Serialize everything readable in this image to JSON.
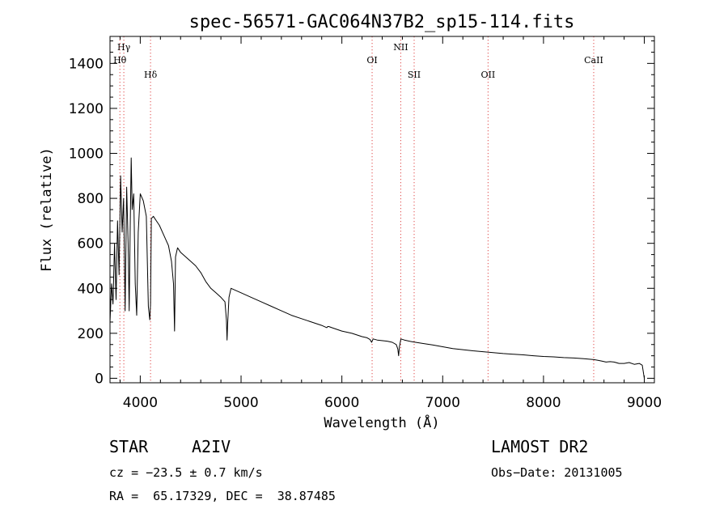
{
  "chart_data": {
    "type": "line",
    "title": "spec-56571-GAC064N37B2_sp15-114.fits",
    "xlabel": "Wavelength (Å)",
    "ylabel": "Flux (relative)",
    "xlim": [
      3700,
      9100
    ],
    "ylim": [
      -20,
      1520
    ],
    "xticks": [
      4000,
      5000,
      6000,
      7000,
      8000,
      9000
    ],
    "yticks": [
      0,
      200,
      400,
      600,
      800,
      1000,
      1200,
      1400
    ],
    "grid": false,
    "series": [
      {
        "x": [
          3700,
          3715,
          3730,
          3745,
          3760,
          3775,
          3790,
          3805,
          3820,
          3835,
          3850,
          3865,
          3880,
          3890,
          3900,
          3910,
          3920,
          3935,
          3950,
          3965,
          3980,
          4000,
          4030,
          4060,
          4080,
          4095,
          4102,
          4110,
          4130,
          4160,
          4190,
          4220,
          4250,
          4280,
          4310,
          4330,
          4340,
          4350,
          4370,
          4400,
          4450,
          4500,
          4550,
          4600,
          4650,
          4700,
          4750,
          4800,
          4840,
          4855,
          4861,
          4867,
          4880,
          4900,
          4950,
          5000,
          5100,
          5200,
          5300,
          5400,
          5500,
          5600,
          5700,
          5800,
          5850,
          5860,
          5870,
          5900,
          6000,
          6100,
          6200,
          6250,
          6280,
          6295,
          6310,
          6350,
          6450,
          6500,
          6540,
          6555,
          6563,
          6571,
          6585,
          6620,
          6700,
          6800,
          6900,
          7000,
          7100,
          7200,
          7300,
          7400,
          7500,
          7600,
          7700,
          7800,
          7900,
          8000,
          8100,
          8200,
          8300,
          8400,
          8500,
          8540,
          8580,
          8620,
          8660,
          8700,
          8750,
          8800,
          8850,
          8900,
          8950,
          8980,
          9000
        ],
        "y": [
          250,
          420,
          330,
          600,
          350,
          700,
          460,
          900,
          650,
          800,
          300,
          850,
          600,
          300,
          650,
          980,
          750,
          820,
          420,
          280,
          650,
          820,
          790,
          720,
          320,
          260,
          330,
          710,
          720,
          700,
          680,
          650,
          620,
          590,
          520,
          420,
          210,
          540,
          580,
          560,
          540,
          520,
          500,
          470,
          430,
          400,
          380,
          360,
          340,
          260,
          170,
          240,
          360,
          400,
          390,
          380,
          360,
          340,
          320,
          300,
          280,
          265,
          250,
          235,
          225,
          230,
          230,
          225,
          210,
          200,
          185,
          180,
          172,
          160,
          175,
          170,
          165,
          160,
          150,
          130,
          100,
          140,
          175,
          170,
          162,
          155,
          148,
          140,
          132,
          127,
          122,
          118,
          114,
          110,
          107,
          104,
          100,
          97,
          95,
          92,
          90,
          87,
          83,
          80,
          76,
          72,
          74,
          72,
          66,
          66,
          70,
          62,
          66,
          58,
          0
        ],
        "color": "#000000"
      }
    ],
    "lines": [
      {
        "label": "Hγ",
        "x": 3837,
        "color": "#e04a4a",
        "row": 0
      },
      {
        "label": "Hθ",
        "x": 3798,
        "color": "#e04a4a",
        "row": 1
      },
      {
        "label": "Hδ",
        "x": 4102,
        "color": "#e04a4a",
        "row": 2
      },
      {
        "label": "OI",
        "x": 6300,
        "color": "#e04a4a",
        "row": 1
      },
      {
        "label": "NII",
        "x": 6584,
        "color": "#e04a4a",
        "row": 0
      },
      {
        "label": "SII",
        "x": 6717,
        "color": "#e04a4a",
        "row": 2
      },
      {
        "label": "OII",
        "x": 7450,
        "color": "#e04a4a",
        "row": 2
      },
      {
        "label": "CaII",
        "x": 8498,
        "color": "#e04a4a",
        "row": 1
      }
    ]
  },
  "info": {
    "class_label": "STAR",
    "subclass": "A2IV",
    "survey": "LAMOST DR2",
    "cz": "cz = −23.5 ± 0.7 km/s",
    "obs_date": "Obs−Date: 20131005",
    "coords": "RA =  65.17329, DEC =  38.87485"
  }
}
